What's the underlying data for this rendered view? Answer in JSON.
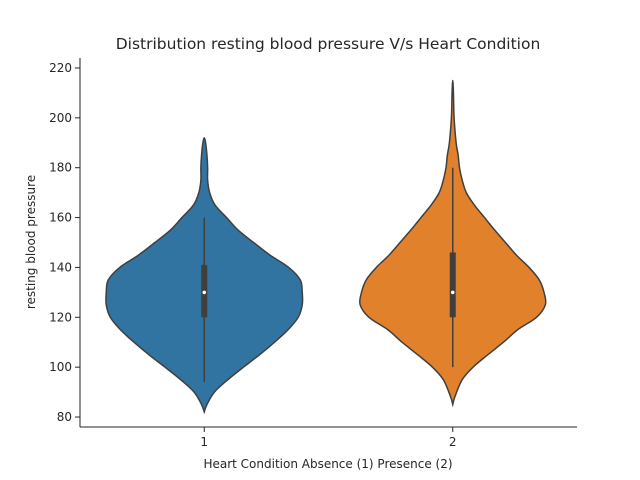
{
  "chart_data": {
    "type": "violin",
    "title": "Distribution resting blood pressure V/s Heart Condition",
    "xlabel": "Heart Condition Absence (1) Presence (2)",
    "ylabel": "resting blood pressure",
    "categories": [
      "1",
      "2"
    ],
    "ylim": [
      76,
      224
    ],
    "yticks": [
      80,
      100,
      120,
      140,
      160,
      180,
      200,
      220
    ],
    "grid": false,
    "series": [
      {
        "category": "1",
        "color": "#3274a1",
        "min": 94,
        "q1": 120,
        "median": 130,
        "q3": 141,
        "max": 160,
        "profile": [
          [
            82,
            0
          ],
          [
            85,
            4
          ],
          [
            90,
            15
          ],
          [
            95,
            35
          ],
          [
            100,
            58
          ],
          [
            105,
            82
          ],
          [
            110,
            104
          ],
          [
            115,
            124
          ],
          [
            120,
            139
          ],
          [
            125,
            145
          ],
          [
            130,
            145
          ],
          [
            135,
            142
          ],
          [
            140,
            125
          ],
          [
            145,
            97
          ],
          [
            150,
            73
          ],
          [
            155,
            50
          ],
          [
            160,
            33
          ],
          [
            165,
            16
          ],
          [
            170,
            8
          ],
          [
            175,
            5
          ],
          [
            180,
            5
          ],
          [
            185,
            4
          ],
          [
            190,
            2
          ],
          [
            192,
            0
          ]
        ]
      },
      {
        "category": "2",
        "color": "#e1812c",
        "min": 100,
        "q1": 120,
        "median": 130,
        "q3": 146,
        "max": 180,
        "profile": [
          [
            85,
            0
          ],
          [
            88,
            3
          ],
          [
            95,
            14
          ],
          [
            100,
            30
          ],
          [
            105,
            52
          ],
          [
            110,
            75
          ],
          [
            115,
            96
          ],
          [
            120,
            124
          ],
          [
            125,
            137
          ],
          [
            130,
            135
          ],
          [
            135,
            128
          ],
          [
            140,
            113
          ],
          [
            145,
            94
          ],
          [
            150,
            78
          ],
          [
            155,
            62
          ],
          [
            160,
            47
          ],
          [
            165,
            32
          ],
          [
            170,
            20
          ],
          [
            175,
            14
          ],
          [
            180,
            10
          ],
          [
            185,
            8
          ],
          [
            190,
            5
          ],
          [
            200,
            2
          ],
          [
            210,
            1
          ],
          [
            215,
            0
          ]
        ]
      }
    ]
  }
}
